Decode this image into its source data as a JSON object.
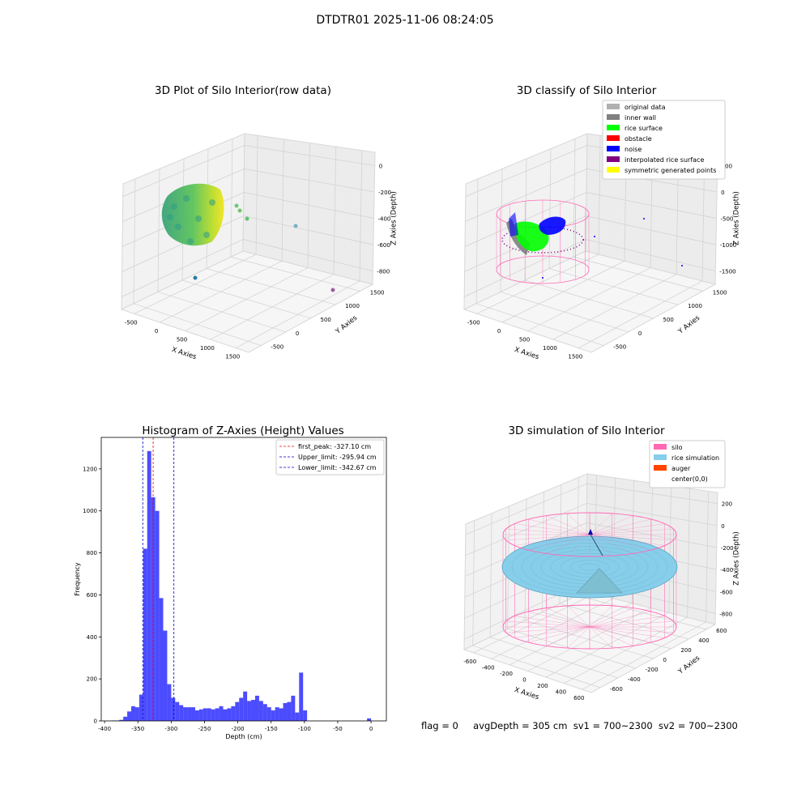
{
  "figure": {
    "suptitle": "DTDTR01 2025-11-06 08:24:05"
  },
  "status": {
    "flag": "flag = 0",
    "avg_depth": "avgDepth = 305 cm",
    "sv1": "sv1 = 700~2300",
    "sv2": "sv2 = 700~2300"
  },
  "colors": {
    "histogram_bar": "#0000ff",
    "first_peak_line": "#ff0000",
    "limit_lines": "#0000cc",
    "silo": "#ff69b4",
    "rice_simulation": "#87ceeb",
    "auger": "#ff4500",
    "original_data": "#b0b0b0",
    "inner_wall": "#808080",
    "rice_surface": "#00ff00",
    "obstacle": "#ff0000",
    "noise": "#0000ff",
    "interpolated_rice_surface": "#800080",
    "symmetric_generated_points": "#ffff00"
  },
  "chart_data": [
    {
      "type": "scatter",
      "title": "3D Plot of Silo Interior(row data)",
      "xlabel": "X Axies",
      "ylabel": "Y Axies",
      "zlabel": "Z Axies (Depth)",
      "x_ticks": [
        "-500",
        "0",
        "500",
        "1000",
        "1500"
      ],
      "y_ticks": [
        "-500",
        "0",
        "500",
        "1000",
        "1500"
      ],
      "z_ticks": [
        "-800",
        "-600",
        "-400",
        "-200",
        "0"
      ]
    },
    {
      "type": "scatter",
      "title": "3D classify of Silo Interior",
      "xlabel": "X Axies",
      "ylabel": "Y Axies",
      "zlabel": "Z Axies (Depth)",
      "x_ticks": [
        "-500",
        "0",
        "500",
        "1000",
        "1500"
      ],
      "y_ticks": [
        "-500",
        "0",
        "500",
        "1000",
        "1500"
      ],
      "z_ticks": [
        "-1500",
        "-1000",
        "-500",
        "0",
        "500"
      ],
      "legend": [
        "original data",
        "inner wall",
        "rice surface",
        "obstacle",
        "noise",
        "interpolated rice surface",
        "symmetric generated points"
      ],
      "legend_loc": "top-right"
    },
    {
      "type": "bar",
      "title": "Histogram of Z-Axies (Height) Values",
      "xlabel": "Depth (cm)",
      "ylabel": "Frequency",
      "xlim": [
        -405,
        23
      ],
      "ylim": [
        0,
        1350
      ],
      "x_ticks": [
        -400,
        -350,
        -300,
        -250,
        -200,
        -150,
        -100,
        -50,
        0
      ],
      "y_ticks": [
        0,
        200,
        400,
        600,
        800,
        1000,
        1200
      ],
      "bin_edges": [
        -390,
        -384,
        -378,
        -372,
        -366,
        -360,
        -354,
        -348,
        -342,
        -336,
        -330,
        -324,
        -318,
        -312,
        -306,
        -300,
        -294,
        -288,
        -282,
        -276,
        -270,
        -264,
        -258,
        -252,
        -246,
        -240,
        -234,
        -228,
        -222,
        -216,
        -210,
        -204,
        -198,
        -192,
        -186,
        -180,
        -174,
        -168,
        -162,
        -156,
        -150,
        -144,
        -138,
        -132,
        -126,
        -120,
        -114,
        -108,
        -102,
        -96,
        -90,
        -84,
        -78,
        -72,
        -66,
        -60,
        -54,
        -48,
        -42,
        -36,
        -30,
        -24,
        -18,
        -12,
        -6,
        0,
        6
      ],
      "values": [
        2,
        2,
        5,
        20,
        45,
        70,
        65,
        125,
        820,
        1285,
        1065,
        1000,
        585,
        430,
        175,
        110,
        90,
        75,
        65,
        65,
        65,
        50,
        55,
        60,
        60,
        55,
        60,
        70,
        55,
        60,
        70,
        90,
        110,
        140,
        95,
        100,
        120,
        95,
        80,
        65,
        50,
        65,
        60,
        85,
        90,
        120,
        40,
        230,
        50,
        0,
        0,
        0,
        0,
        0,
        0,
        0,
        0,
        0,
        0,
        0,
        0,
        0,
        0,
        0,
        12,
        0
      ],
      "vlines": [
        {
          "label": "first_peak: -327.10 cm",
          "x": -327.1,
          "color": "#ff0000"
        },
        {
          "label": "Upper_limit: -295.94 cm",
          "x": -295.94,
          "color": "#0000cc"
        },
        {
          "label": "Lower_limit: -342.67 cm",
          "x": -342.67,
          "color": "#0000cc"
        }
      ],
      "legend_loc": "top-right"
    },
    {
      "type": "area",
      "title": "3D simulation of Silo Interior",
      "xlabel": "X Axies",
      "ylabel": "Y Axies",
      "zlabel": "Z Axies (Depth)",
      "x_ticks": [
        "-600",
        "-400",
        "-200",
        "0",
        "200",
        "400",
        "600"
      ],
      "y_ticks": [
        "-600",
        "-400",
        "-200",
        "0",
        "200",
        "400",
        "600"
      ],
      "z_ticks": [
        "-800",
        "-600",
        "-400",
        "-200",
        "0",
        "200"
      ],
      "legend": [
        "silo",
        "rice simulation",
        "auger",
        "center(0,0)"
      ],
      "legend_loc": "top-right"
    }
  ]
}
